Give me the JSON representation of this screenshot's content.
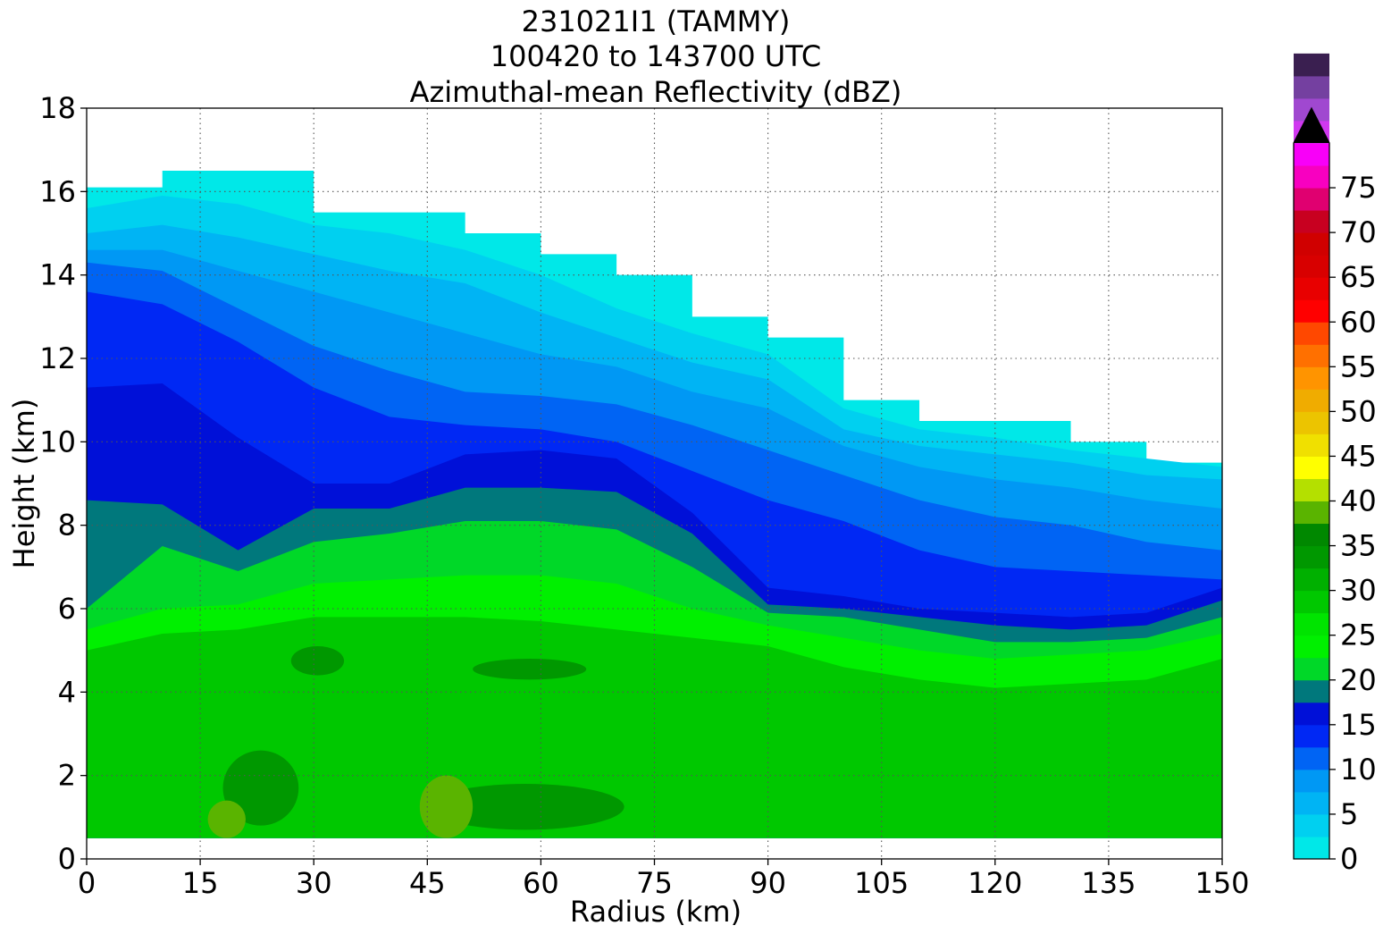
{
  "chart_data": {
    "type": "heatmap",
    "title": [
      "231021I1 (TAMMY)",
      "100420 to 143700 UTC",
      "Azimuthal-mean Reflectivity (dBZ)"
    ],
    "xlabel": "Radius (km)",
    "ylabel": "Height (km)",
    "xlim": [
      0,
      150
    ],
    "ylim": [
      0,
      18
    ],
    "x_ticks": [
      "0",
      "15",
      "30",
      "45",
      "60",
      "75",
      "90",
      "105",
      "120",
      "135",
      "150"
    ],
    "y_ticks": [
      "0",
      "2",
      "4",
      "6",
      "8",
      "10",
      "12",
      "14",
      "16",
      "18"
    ],
    "grid": true,
    "colorbar": {
      "units": "dBZ",
      "min": 0,
      "max": 80,
      "step": 2.5,
      "extend": "max",
      "ticks": [
        "0",
        "5",
        "10",
        "15",
        "20",
        "25",
        "30",
        "35",
        "40",
        "45",
        "50",
        "55",
        "60",
        "65",
        "70",
        "75"
      ],
      "colors": [
        "#00e8e8",
        "#00d0f0",
        "#00b4f4",
        "#0098f4",
        "#0064f4",
        "#0028f4",
        "#0010d8",
        "#00787c",
        "#00d828",
        "#00f000",
        "#00e400",
        "#00c800",
        "#00b000",
        "#009800",
        "#008800",
        "#5ab400",
        "#b4e000",
        "#ffff00",
        "#f0e000",
        "#ecc400",
        "#f0ac00",
        "#ff9400",
        "#ff7000",
        "#ff4800",
        "#ff0000",
        "#e80000",
        "#d80000",
        "#d00000",
        "#c80020",
        "#e00070",
        "#f800c0",
        "#f800f8",
        "#d038f0",
        "#a048d0",
        "#7440a0",
        "#3a1f50"
      ],
      "over_color": "#000000"
    },
    "radius_km": [
      0,
      10,
      20,
      30,
      40,
      50,
      60,
      70,
      80,
      90,
      100,
      110,
      120,
      130,
      140,
      150
    ],
    "echo_top_km": [
      16.1,
      16.5,
      16.5,
      15.5,
      15.5,
      15.0,
      14.5,
      14.0,
      13.0,
      12.5,
      11.0,
      10.5,
      10.5,
      10.0,
      9.5,
      9.5
    ],
    "cloud_base_km": 0.5,
    "contour_heights_km": {
      "2.5_dBZ": [
        15.6,
        15.9,
        15.7,
        15.2,
        15.0,
        14.6,
        14.0,
        13.2,
        12.6,
        12.1,
        10.8,
        10.3,
        10.1,
        9.8,
        9.6,
        9.4
      ],
      "5_dBZ": [
        15.0,
        15.2,
        14.9,
        14.5,
        14.1,
        13.8,
        13.1,
        12.5,
        11.9,
        11.5,
        10.3,
        9.9,
        9.7,
        9.5,
        9.2,
        9.1
      ],
      "7.5_dBZ": [
        14.6,
        14.6,
        14.1,
        13.6,
        13.1,
        12.6,
        12.1,
        11.8,
        11.2,
        10.8,
        9.9,
        9.4,
        9.1,
        8.9,
        8.6,
        8.4
      ],
      "10_dBZ": [
        14.3,
        14.1,
        13.2,
        12.3,
        11.7,
        11.2,
        11.1,
        10.9,
        10.4,
        9.8,
        9.2,
        8.6,
        8.2,
        8.0,
        7.6,
        7.4
      ],
      "12.5_dBZ": [
        13.6,
        13.3,
        12.4,
        11.3,
        10.6,
        10.4,
        10.3,
        10.0,
        9.3,
        8.6,
        8.1,
        7.4,
        7.0,
        6.9,
        6.8,
        6.7
      ],
      "15_dBZ": [
        11.3,
        11.4,
        10.1,
        9.0,
        9.0,
        9.7,
        9.8,
        9.6,
        8.3,
        6.5,
        6.3,
        6.0,
        5.9,
        5.8,
        5.9,
        6.5
      ],
      "17.5_dBZ": [
        8.6,
        8.5,
        7.4,
        8.4,
        8.4,
        8.9,
        8.9,
        8.8,
        7.8,
        6.1,
        6.0,
        5.8,
        5.6,
        5.5,
        5.6,
        6.2
      ],
      "20_dBZ": [
        6.0,
        7.5,
        6.9,
        7.6,
        7.8,
        8.1,
        8.1,
        7.9,
        7.0,
        5.9,
        5.8,
        5.5,
        5.2,
        5.2,
        5.3,
        5.8
      ],
      "22.5_dBZ": [
        5.5,
        6.0,
        6.1,
        6.6,
        6.7,
        6.8,
        6.8,
        6.6,
        6.0,
        5.6,
        5.3,
        5.0,
        4.8,
        4.9,
        5.0,
        5.4
      ],
      "25_dBZ": [
        5.0,
        5.4,
        5.5,
        5.8,
        5.8,
        5.8,
        5.7,
        5.5,
        5.3,
        5.1,
        4.6,
        4.3,
        4.1,
        4.2,
        4.3,
        4.8
      ]
    },
    "embedded_maxima": [
      {
        "label": "27.5 dBZ",
        "x_km": [
          27,
          34
        ],
        "y_km": [
          4.4,
          5.1
        ]
      },
      {
        "label": "27.5 dBZ",
        "x_km": [
          51,
          66
        ],
        "y_km": [
          4.3,
          4.8
        ]
      },
      {
        "label": "27.5 dBZ",
        "x_km": [
          18,
          28
        ],
        "y_km": [
          0.8,
          2.6
        ]
      },
      {
        "label": "27.5 dBZ",
        "x_km": [
          45,
          71
        ],
        "y_km": [
          0.7,
          1.8
        ]
      },
      {
        "label": "30 dBZ",
        "x_km": [
          16,
          21
        ],
        "y_km": [
          0.5,
          1.4
        ]
      },
      {
        "label": "30 dBZ",
        "x_km": [
          44,
          51
        ],
        "y_km": [
          0.5,
          2.0
        ]
      }
    ]
  }
}
